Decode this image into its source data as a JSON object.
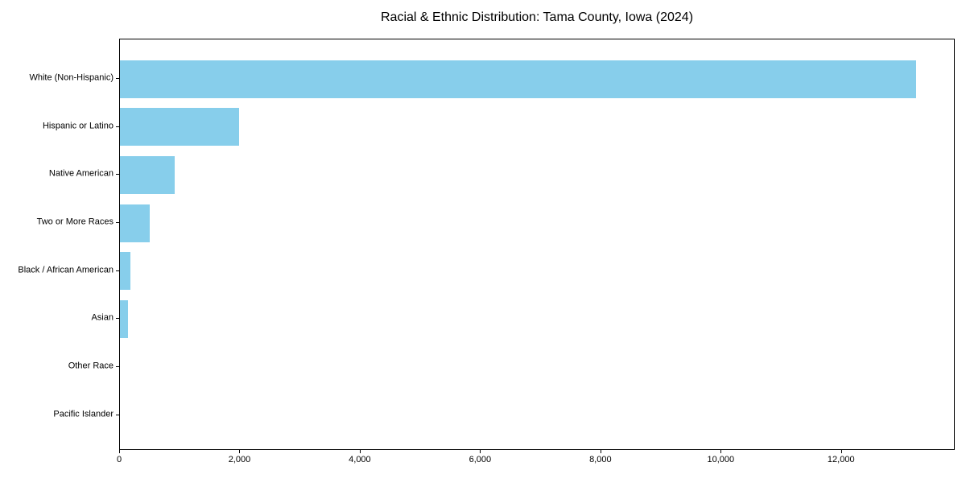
{
  "chart_data": {
    "type": "bar",
    "orientation": "horizontal",
    "title": "Racial & Ethnic Distribution: Tama County, Iowa (2024)",
    "categories": [
      "White (Non-Hispanic)",
      "Hispanic or Latino",
      "Native American",
      "Two or More Races",
      "Black / African American",
      "Asian",
      "Other Race",
      "Pacific Islander"
    ],
    "values": [
      13230,
      1975,
      905,
      490,
      180,
      140,
      0,
      0
    ],
    "xlabel": "",
    "ylabel": "",
    "xlim": [
      0,
      13890
    ],
    "xticks": [
      0,
      2000,
      4000,
      6000,
      8000,
      10000,
      12000
    ],
    "xtick_labels": [
      "0",
      "2,000",
      "4,000",
      "6,000",
      "8,000",
      "10,000",
      "12,000"
    ],
    "grid": false,
    "legend": false,
    "bar_color": "#87CEEB",
    "spine_color": "#000000",
    "text_color": "#000000",
    "background_color": "#ffffff"
  }
}
